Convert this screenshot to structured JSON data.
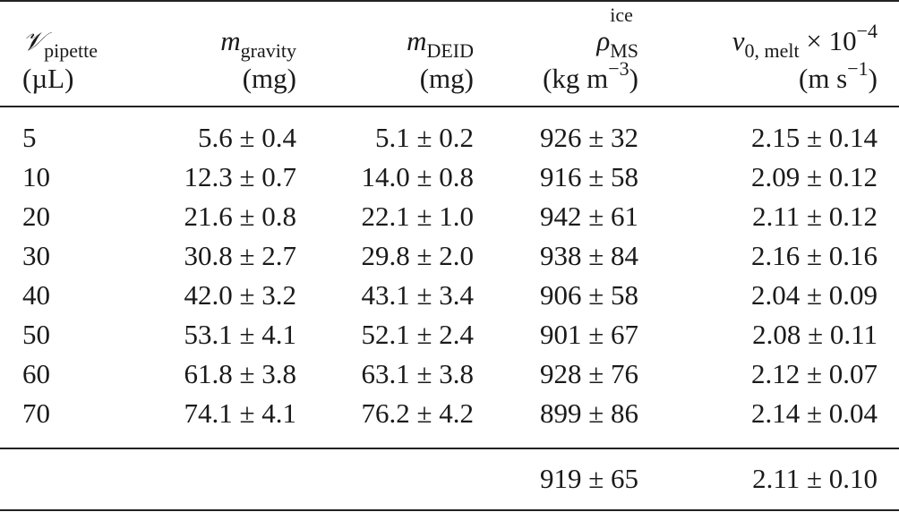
{
  "headers": {
    "col1": {
      "symbol": "𝒱",
      "subscript": "pipette",
      "unit": "(µL)"
    },
    "col2": {
      "symbol": "m",
      "subscript": "gravity",
      "unit": "(mg)"
    },
    "col3": {
      "symbol": "m",
      "subscript": "DEID",
      "unit": "(mg)"
    },
    "col4": {
      "symbol": "ρ",
      "superscript": "ice",
      "subscript": "MS",
      "unit_main": "(kg m",
      "unit_exp": "−3",
      "unit_close": ")"
    },
    "col5": {
      "symbol": "v",
      "subscript": "0, melt",
      "scale": " × 10",
      "scale_exp": "−4",
      "unit_main": "(m s",
      "unit_exp": "−1",
      "unit_close": ")"
    }
  },
  "rows": [
    {
      "vol": "5",
      "m_gravity": "5.6 ± 0.4",
      "m_deid": "5.1 ± 0.2",
      "rho": "926 ± 32",
      "v0": "2.15 ± 0.14"
    },
    {
      "vol": "10",
      "m_gravity": "12.3 ± 0.7",
      "m_deid": "14.0 ± 0.8",
      "rho": "916 ± 58",
      "v0": "2.09 ± 0.12"
    },
    {
      "vol": "20",
      "m_gravity": "21.6 ± 0.8",
      "m_deid": "22.1 ± 1.0",
      "rho": "942 ± 61",
      "v0": "2.11 ± 0.12"
    },
    {
      "vol": "30",
      "m_gravity": "30.8 ± 2.7",
      "m_deid": "29.8 ± 2.0",
      "rho": "938 ± 84",
      "v0": "2.16 ± 0.16"
    },
    {
      "vol": "40",
      "m_gravity": "42.0 ± 3.2",
      "m_deid": "43.1 ± 3.4",
      "rho": "906 ± 58",
      "v0": "2.04 ± 0.09"
    },
    {
      "vol": "50",
      "m_gravity": "53.1 ± 4.1",
      "m_deid": "52.1 ± 2.4",
      "rho": "901 ± 67",
      "v0": "2.08 ± 0.11"
    },
    {
      "vol": "60",
      "m_gravity": "61.8 ± 3.8",
      "m_deid": "63.1 ± 3.8",
      "rho": "928 ± 76",
      "v0": "2.12 ± 0.07"
    },
    {
      "vol": "70",
      "m_gravity": "74.1 ± 4.1",
      "m_deid": "76.2 ± 4.2",
      "rho": "899 ± 86",
      "v0": "2.14 ± 0.04"
    }
  ],
  "summary": {
    "rho": "919 ± 65",
    "v0": "2.11 ± 0.10"
  }
}
